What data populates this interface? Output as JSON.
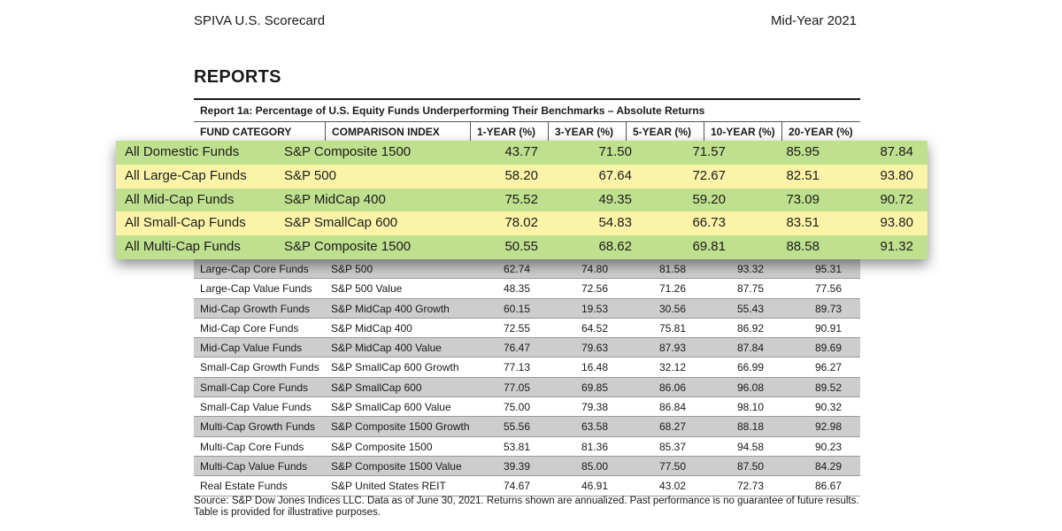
{
  "header": {
    "left": "SPIVA U.S. Scorecard",
    "right": "Mid-Year 2021"
  },
  "section_title": "REPORTS",
  "report": {
    "title": "Report 1a: Percentage of U.S. Equity Funds Underperforming Their Benchmarks – Absolute Returns",
    "columns": [
      "FUND CATEGORY",
      "COMPARISON INDEX",
      "1-YEAR (%)",
      "3-YEAR (%)",
      "5-YEAR (%)",
      "10-YEAR (%)",
      "20-YEAR (%)"
    ]
  },
  "highlighted_rows": [
    {
      "category": "All Domestic Funds",
      "index": "S&P Composite 1500",
      "y1": "43.77",
      "y3": "71.50",
      "y5": "71.57",
      "y10": "85.95",
      "y20": "87.84"
    },
    {
      "category": "All Large-Cap Funds",
      "index": "S&P 500",
      "y1": "58.20",
      "y3": "67.64",
      "y5": "72.67",
      "y10": "82.51",
      "y20": "93.80"
    },
    {
      "category": "All Mid-Cap Funds",
      "index": "S&P MidCap 400",
      "y1": "75.52",
      "y3": "49.35",
      "y5": "59.20",
      "y10": "73.09",
      "y20": "90.72"
    },
    {
      "category": "All Small-Cap Funds",
      "index": "S&P SmallCap 600",
      "y1": "78.02",
      "y3": "54.83",
      "y5": "66.73",
      "y10": "83.51",
      "y20": "93.80"
    },
    {
      "category": "All Multi-Cap Funds",
      "index": "S&P Composite 1500",
      "y1": "50.55",
      "y3": "68.62",
      "y5": "69.81",
      "y10": "88.58",
      "y20": "91.32"
    }
  ],
  "rows": [
    {
      "category": "Large-Cap Core Funds",
      "index": "S&P 500",
      "y1": "62.74",
      "y3": "74.80",
      "y5": "81.58",
      "y10": "93.32",
      "y20": "95.31"
    },
    {
      "category": "Large-Cap Value Funds",
      "index": "S&P 500 Value",
      "y1": "48.35",
      "y3": "72.56",
      "y5": "71.26",
      "y10": "87.75",
      "y20": "77.56"
    },
    {
      "category": "Mid-Cap Growth Funds",
      "index": "S&P MidCap 400 Growth",
      "y1": "60.15",
      "y3": "19.53",
      "y5": "30.56",
      "y10": "55.43",
      "y20": "89.73"
    },
    {
      "category": "Mid-Cap Core Funds",
      "index": "S&P MidCap 400",
      "y1": "72.55",
      "y3": "64.52",
      "y5": "75.81",
      "y10": "86.92",
      "y20": "90.91"
    },
    {
      "category": "Mid-Cap Value Funds",
      "index": "S&P MidCap 400 Value",
      "y1": "76.47",
      "y3": "79.63",
      "y5": "87.93",
      "y10": "87.84",
      "y20": "89.69"
    },
    {
      "category": "Small-Cap Growth Funds",
      "index": "S&P SmallCap 600 Growth",
      "y1": "77.13",
      "y3": "16.48",
      "y5": "32.12",
      "y10": "66.99",
      "y20": "96.27"
    },
    {
      "category": "Small-Cap Core Funds",
      "index": "S&P SmallCap 600",
      "y1": "77.05",
      "y3": "69.85",
      "y5": "86.06",
      "y10": "96.08",
      "y20": "89.52"
    },
    {
      "category": "Small-Cap Value Funds",
      "index": "S&P SmallCap 600 Value",
      "y1": "75.00",
      "y3": "79.38",
      "y5": "86.84",
      "y10": "98.10",
      "y20": "90.32"
    },
    {
      "category": "Multi-Cap Growth Funds",
      "index": "S&P Composite 1500 Growth",
      "y1": "55.56",
      "y3": "63.58",
      "y5": "68.27",
      "y10": "88.18",
      "y20": "92.98"
    },
    {
      "category": "Multi-Cap Core Funds",
      "index": "S&P Composite 1500",
      "y1": "53.81",
      "y3": "81.36",
      "y5": "85.37",
      "y10": "94.58",
      "y20": "90.23"
    },
    {
      "category": "Multi-Cap Value Funds",
      "index": "S&P Composite 1500 Value",
      "y1": "39.39",
      "y3": "85.00",
      "y5": "77.50",
      "y10": "87.50",
      "y20": "84.29"
    },
    {
      "category": "Real Estate Funds",
      "index": "S&P United States REIT",
      "y1": "74.67",
      "y3": "46.91",
      "y5": "43.02",
      "y10": "72.73",
      "y20": "86.67"
    }
  ],
  "footnote": "Source: S&P Dow Jones Indices LLC. Data as of June 30, 2021. Returns shown are annualized. Past performance is no guarantee of future results. Table is provided for illustrative purposes.",
  "colors": {
    "highlight_green": "#bfe08e",
    "highlight_yellow": "#fbf4a8",
    "row_shade": "#cdcdcd"
  }
}
